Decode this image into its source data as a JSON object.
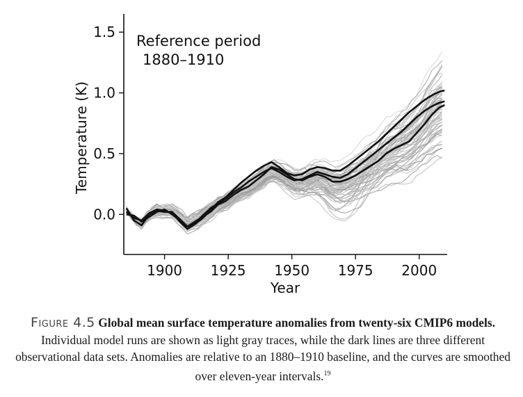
{
  "chart_data": {
    "type": "line",
    "xlabel": "Year",
    "ylabel": "Temperature (K)",
    "xlim": [
      1884,
      2011
    ],
    "ylim": [
      -0.33,
      1.65
    ],
    "xticks": [
      1900,
      1925,
      1950,
      1975,
      2000
    ],
    "yticks": [
      0.0,
      0.5,
      1.0,
      1.5
    ],
    "xtick_labels": [
      "1900",
      "1925",
      "1950",
      "1975",
      "2000"
    ],
    "ytick_labels": [
      "0.0",
      "0.5",
      "1.0",
      "1.5"
    ],
    "annotation": [
      "Reference period",
      "1880–1910"
    ],
    "series": [
      {
        "style": "observational",
        "color": "#111111",
        "x": [
          1885,
          1888,
          1891,
          1894,
          1897,
          1900,
          1903,
          1906,
          1909,
          1912,
          1915,
          1918,
          1921,
          1924,
          1927,
          1930,
          1933,
          1936,
          1939,
          1942,
          1945,
          1948,
          1951,
          1954,
          1957,
          1960,
          1963,
          1966,
          1969,
          1972,
          1975,
          1978,
          1981,
          1984,
          1987,
          1990,
          1993,
          1996,
          1999,
          2002,
          2005,
          2008,
          2010
        ],
        "y": [
          0.05,
          -0.05,
          -0.09,
          0.0,
          0.03,
          0.02,
          0.02,
          -0.04,
          -0.1,
          -0.06,
          -0.02,
          0.02,
          0.08,
          0.11,
          0.16,
          0.2,
          0.23,
          0.28,
          0.33,
          0.39,
          0.37,
          0.33,
          0.29,
          0.28,
          0.31,
          0.33,
          0.31,
          0.27,
          0.27,
          0.29,
          0.32,
          0.36,
          0.4,
          0.44,
          0.5,
          0.54,
          0.57,
          0.6,
          0.67,
          0.74,
          0.82,
          0.88,
          0.9
        ]
      },
      {
        "style": "observational",
        "color": "#111111",
        "x": [
          1885,
          1888,
          1891,
          1894,
          1897,
          1900,
          1903,
          1906,
          1909,
          1912,
          1915,
          1918,
          1921,
          1924,
          1927,
          1930,
          1933,
          1936,
          1939,
          1942,
          1945,
          1948,
          1951,
          1954,
          1957,
          1960,
          1963,
          1966,
          1969,
          1972,
          1975,
          1978,
          1981,
          1984,
          1987,
          1990,
          1993,
          1996,
          1999,
          2002,
          2005,
          2008,
          2010
        ],
        "y": [
          0.02,
          -0.03,
          -0.05,
          0.01,
          0.04,
          0.03,
          0.01,
          -0.06,
          -0.12,
          -0.08,
          -0.03,
          0.03,
          0.1,
          0.14,
          0.2,
          0.26,
          0.31,
          0.36,
          0.4,
          0.43,
          0.39,
          0.34,
          0.32,
          0.33,
          0.37,
          0.39,
          0.38,
          0.36,
          0.36,
          0.4,
          0.45,
          0.5,
          0.55,
          0.6,
          0.66,
          0.72,
          0.78,
          0.84,
          0.89,
          0.94,
          0.98,
          1.01,
          1.02
        ]
      },
      {
        "style": "observational",
        "color": "#111111",
        "x": [
          1885,
          1888,
          1891,
          1894,
          1897,
          1900,
          1903,
          1906,
          1909,
          1912,
          1915,
          1918,
          1921,
          1924,
          1927,
          1930,
          1933,
          1936,
          1939,
          1942,
          1945,
          1948,
          1951,
          1954,
          1957,
          1960,
          1963,
          1966,
          1969,
          1972,
          1975,
          1978,
          1981,
          1984,
          1987,
          1990,
          1993,
          1996,
          1999,
          2002,
          2005,
          2008,
          2010
        ],
        "y": [
          0.0,
          -0.01,
          -0.06,
          -0.02,
          0.02,
          0.04,
          0.0,
          -0.05,
          -0.1,
          -0.07,
          -0.01,
          0.05,
          0.09,
          0.13,
          0.18,
          0.22,
          0.27,
          0.31,
          0.35,
          0.38,
          0.35,
          0.31,
          0.28,
          0.29,
          0.32,
          0.35,
          0.33,
          0.31,
          0.3,
          0.33,
          0.38,
          0.43,
          0.48,
          0.53,
          0.58,
          0.63,
          0.68,
          0.74,
          0.8,
          0.85,
          0.89,
          0.92,
          0.93
        ]
      }
    ]
  }
}
